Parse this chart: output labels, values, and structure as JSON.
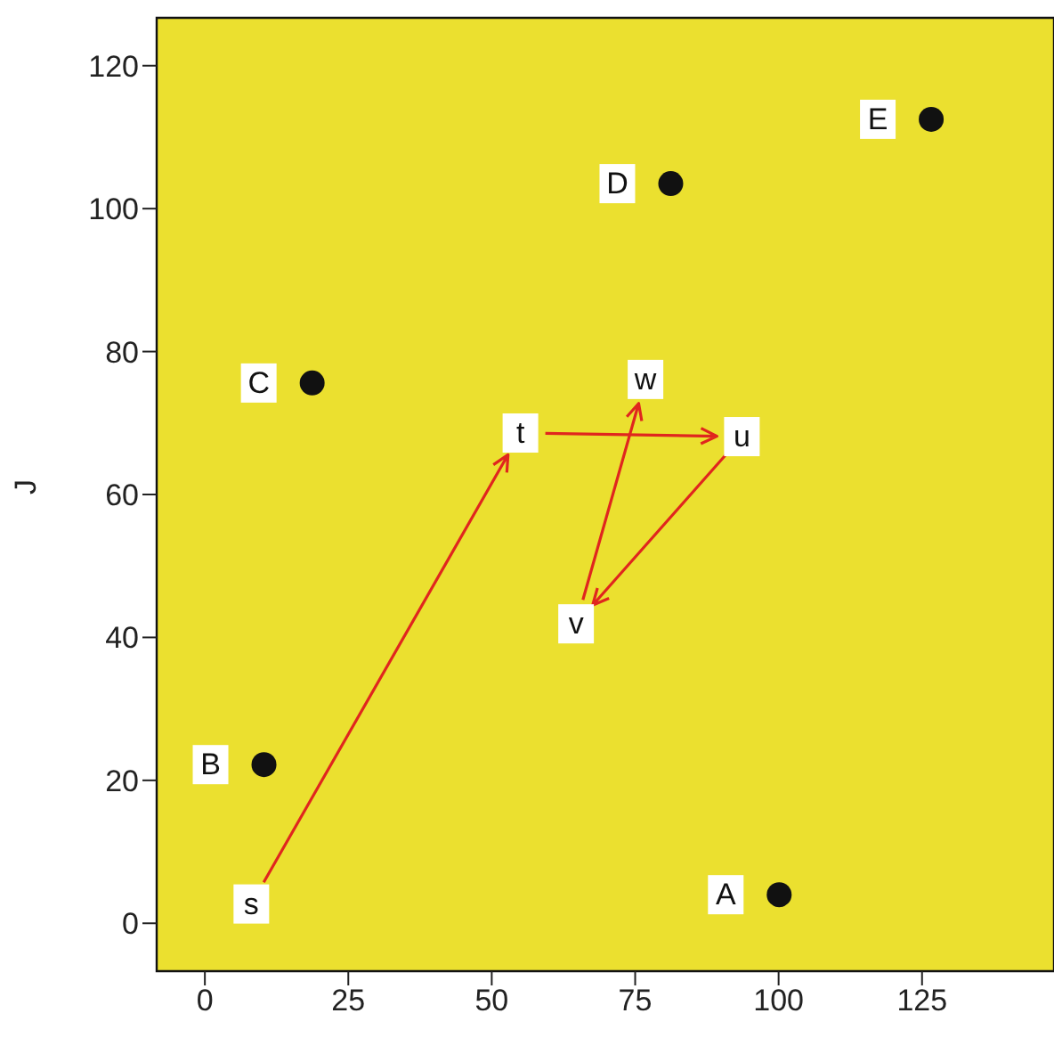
{
  "chart_data": {
    "type": "scatter",
    "ylabel": "J",
    "series": [
      {
        "color": "#111111",
        "x": [
          100.1,
          10.3,
          18.7,
          81.2,
          126.6
        ],
        "values": [
          4.0,
          22.2,
          75.6,
          103.5,
          112.5
        ],
        "value_labels": [
          "A",
          "B",
          "C",
          "D",
          "E"
        ]
      }
    ],
    "annotations": [
      {
        "text": "s",
        "x": 8.1,
        "y": 2.7
      },
      {
        "text": "t",
        "x": 55,
        "y": 68.6
      },
      {
        "text": "u",
        "x": 93.6,
        "y": 68.1
      },
      {
        "text": "v",
        "x": 64.7,
        "y": 41.9
      },
      {
        "text": "w",
        "x": 76.8,
        "y": 76.1
      }
    ],
    "xlim": [
      -8.4,
      148
    ],
    "xticks": [
      0,
      25,
      50,
      75,
      100,
      125
    ],
    "ylim": [
      -6.7,
      126.7
    ],
    "yticks": [
      0,
      20,
      40,
      60,
      80,
      100,
      120
    ],
    "marker": "circle"
  }
}
